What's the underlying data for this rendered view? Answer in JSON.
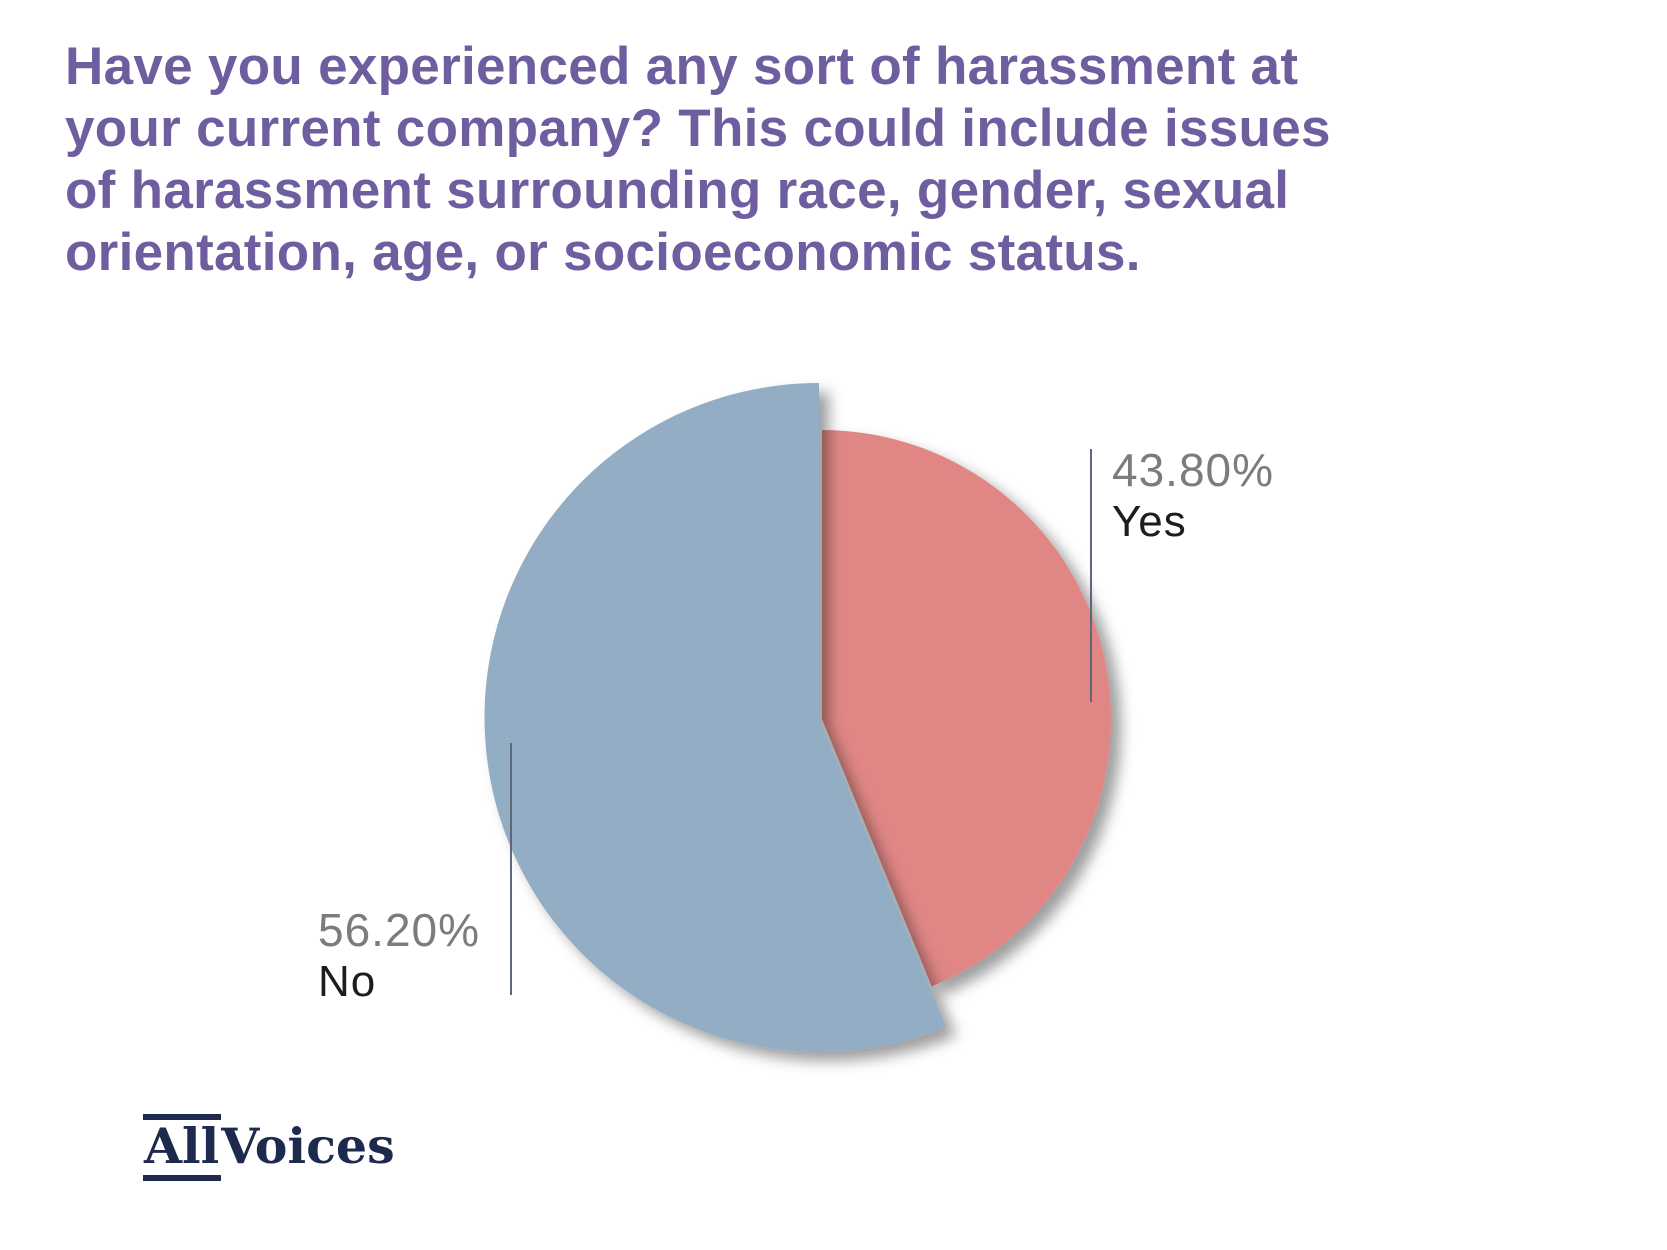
{
  "title": {
    "lines": [
      "Have you experienced any sort of harassment at",
      "your current company? This could include issues",
      "of harassment surrounding race, gender, sexual",
      "orientation, age, or socioeconomic status."
    ],
    "color": "#6E5EA0"
  },
  "chart_data": {
    "type": "pie",
    "title": "Have you experienced any sort of harassment at your current company? This could include issues of harassment surrounding race, gender, sexual orientation, age, or socioeconomic status.",
    "slices": [
      {
        "label": "Yes",
        "value": 43.8,
        "display": "43.80%",
        "color": "#E08786"
      },
      {
        "label": "No",
        "value": 56.2,
        "display": "56.20%",
        "color": "#92ADC4"
      }
    ],
    "start_angle_deg": 0,
    "direction": "clockwise",
    "legend_position": "callout-labels",
    "grid": false
  },
  "label_style": {
    "percent_color": "#7C7C7C",
    "name_color": "#1D1D1D",
    "leader_color": "#5D6879"
  },
  "logo": {
    "part1": "All",
    "part2": "Voices",
    "color": "#1E2A4D"
  }
}
